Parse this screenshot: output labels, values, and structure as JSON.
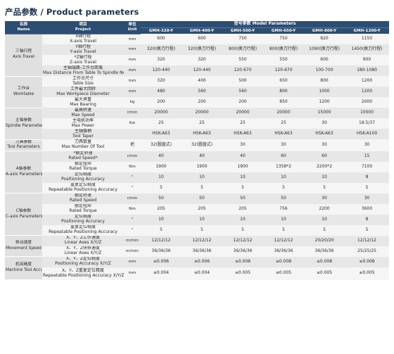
{
  "title": "产品参数 / Product parameters",
  "header": {
    "name_zh": "名称",
    "name_en": "Name",
    "project_zh": "项目",
    "project_en": "Project",
    "unit_zh": "单位",
    "unit_en": "Unit",
    "model_params": "型号参数  Model Parameters",
    "models": [
      "GMH-320-Y",
      "GMH-400-Y",
      "GMH-500-Y",
      "GMH-650-Y",
      "GMH-800-Y",
      "GMH-1200-Y"
    ]
  },
  "groups": [
    {
      "name_zh": "三轴行程",
      "name_en": "Axis Travel",
      "rows": [
        {
          "lines": [
            "X轴行程",
            "X-axis Travel"
          ],
          "unit": "mm",
          "values": [
            "600",
            "600",
            "750",
            "750",
            "820",
            "1150"
          ]
        },
        {
          "lines": [
            "Y轴行程",
            "Y-axis Travel"
          ],
          "unit": "mm",
          "values": [
            "320(换刀行程)",
            "320(换刀行程)",
            "800(换刀行程)",
            "800(换刀行程)",
            "1090(换刀行程)",
            "1450(换刀行程)"
          ]
        },
        {
          "lines": [
            "*Z轴行程",
            "Z-axis Travel"
          ],
          "unit": "mm",
          "values": [
            "320",
            "320",
            "550",
            "550",
            "600",
            "900"
          ]
        },
        {
          "lines": [
            "主轴端面-工作台距离",
            "Max Distance From Table To Spindle Nose"
          ],
          "unit": "mm",
          "values": [
            "120-440",
            "120-440",
            "120-670",
            "120-670",
            "100-700",
            "180-1080"
          ]
        }
      ]
    },
    {
      "name_zh": "工作台",
      "name_en": "Worktable",
      "rows": [
        {
          "lines": [
            "工作台尺寸",
            "Table Size"
          ],
          "unit": "mm",
          "values": [
            "320",
            "400",
            "500",
            "650",
            "800",
            "1200"
          ]
        },
        {
          "lines": [
            "工件最大回转",
            "Max Workpiece Diameter"
          ],
          "unit": "mm",
          "values": [
            "480",
            "560",
            "560",
            "800",
            "1000",
            "1200"
          ]
        },
        {
          "lines": [
            "最大承重",
            "Max Bearing"
          ],
          "unit": "kg",
          "values": [
            "200",
            "200",
            "200",
            "850",
            "1200",
            "2000"
          ]
        }
      ]
    },
    {
      "name_zh": "主轴参数",
      "name_en": "Spindle Parameters",
      "rows": [
        {
          "lines": [
            "最高转速",
            "Max Speed"
          ],
          "unit": "r/min",
          "values": [
            "20000",
            "20000",
            "20000",
            "20000",
            "15000",
            "10000"
          ]
        },
        {
          "lines": [
            "主电机功率",
            "Max Power"
          ],
          "unit": "Kw",
          "values": [
            "25",
            "25",
            "25",
            "25",
            "30",
            "18.5/37"
          ]
        },
        {
          "lines": [
            "主轴锥柄",
            "Tool Taper"
          ],
          "unit": "",
          "values": [
            "HSK-A63",
            "HSK-A63",
            "HSK-A63",
            "HSK-A63",
            "HSK-A63",
            "HSK-A100"
          ]
        }
      ]
    },
    {
      "name_zh": "刀具参数",
      "name_en": "Tool Parameters",
      "rows": [
        {
          "lines": [
            "刀具数量",
            "Max Number Of Tool"
          ],
          "unit": "把",
          "values": [
            "32(圆盘式)",
            "32(圆盘式)",
            "30",
            "30",
            "30",
            "30"
          ]
        }
      ]
    },
    {
      "name_zh": "A轴参数",
      "name_en": "A-axis Parameters",
      "rows": [
        {
          "lines": [
            "*额定转速",
            "Rated Speed*"
          ],
          "unit": "r/min",
          "values": [
            "40",
            "40",
            "40",
            "60",
            "60",
            "15"
          ]
        },
        {
          "lines": [
            "额定扭矩",
            "Rated Torque"
          ],
          "unit": "Nm",
          "values": [
            "1900",
            "1900",
            "1900",
            "1358*2",
            "2200*2",
            "7100"
          ]
        },
        {
          "lines": [
            "定位精度",
            "Positioning Accuracy"
          ],
          "unit": "\"",
          "values": [
            "10",
            "10",
            "10",
            "10",
            "10",
            "8"
          ]
        },
        {
          "lines": [
            "重复定位精度",
            "Repeatable Positioning Accuracy"
          ],
          "unit": "\"",
          "values": [
            "5",
            "5",
            "5",
            "5",
            "5",
            "5"
          ]
        }
      ]
    },
    {
      "name_zh": "C轴参数",
      "name_en": "C-axis Parameters",
      "rows": [
        {
          "lines": [
            "额定转速",
            "Rated Speed"
          ],
          "unit": "r/min",
          "values": [
            "50",
            "50",
            "50",
            "50",
            "30",
            "30"
          ]
        },
        {
          "lines": [
            "额定扭矩",
            "Rated Torque"
          ],
          "unit": "Nm",
          "values": [
            "205",
            "205",
            "205",
            "756",
            "2200",
            "3600"
          ]
        },
        {
          "lines": [
            "定位精度",
            "Positioning Accuracy"
          ],
          "unit": "\"",
          "values": [
            "10",
            "10",
            "10",
            "10",
            "10",
            "8"
          ]
        },
        {
          "lines": [
            "重复定位精度",
            "Repeatable Positioning Accuracy"
          ],
          "unit": "\"",
          "values": [
            "5",
            "5",
            "5",
            "5",
            "5",
            "5"
          ]
        }
      ]
    },
    {
      "name_zh": "移动速度",
      "name_en": "Movement Speed",
      "rows": [
        {
          "lines": [
            "X、Y、Z工作速度",
            "Linear Axes X/Y/Z"
          ],
          "unit": "m/min",
          "values": [
            "12/12/12",
            "12/12/12",
            "12/12/12",
            "12/12/12",
            "20/20/20",
            "12/12/12"
          ]
        },
        {
          "lines": [
            "X、Y、Z快移速度",
            "Linear Axes X/Y/Z"
          ],
          "unit": "m/min",
          "values": [
            "36/36/36",
            "36/36/36",
            "36/36/36",
            "36/36/36",
            "36/36/36",
            "25/25/25"
          ]
        }
      ]
    },
    {
      "name_zh": "机床精度",
      "name_en": "Machine Tool Accuracy",
      "rows": [
        {
          "lines": [
            "X、Y、Z定位精度",
            "Positioning Accuracy X/Y/Z"
          ],
          "unit": "mm",
          "values": [
            "≤0.006",
            "≤0.006",
            "≤0.008",
            "≤0.008",
            "≤0.008",
            "≤0.008"
          ]
        },
        {
          "lines": [
            "X、Y、Z重复定位精度",
            "Repeatable Positioning Accuracy X/Y/Z"
          ],
          "unit": "mm",
          "values": [
            "≤0.004",
            "≤0.004",
            "≤0.005",
            "≤0.005",
            "≤0.005",
            "≤0.005"
          ]
        }
      ]
    }
  ]
}
